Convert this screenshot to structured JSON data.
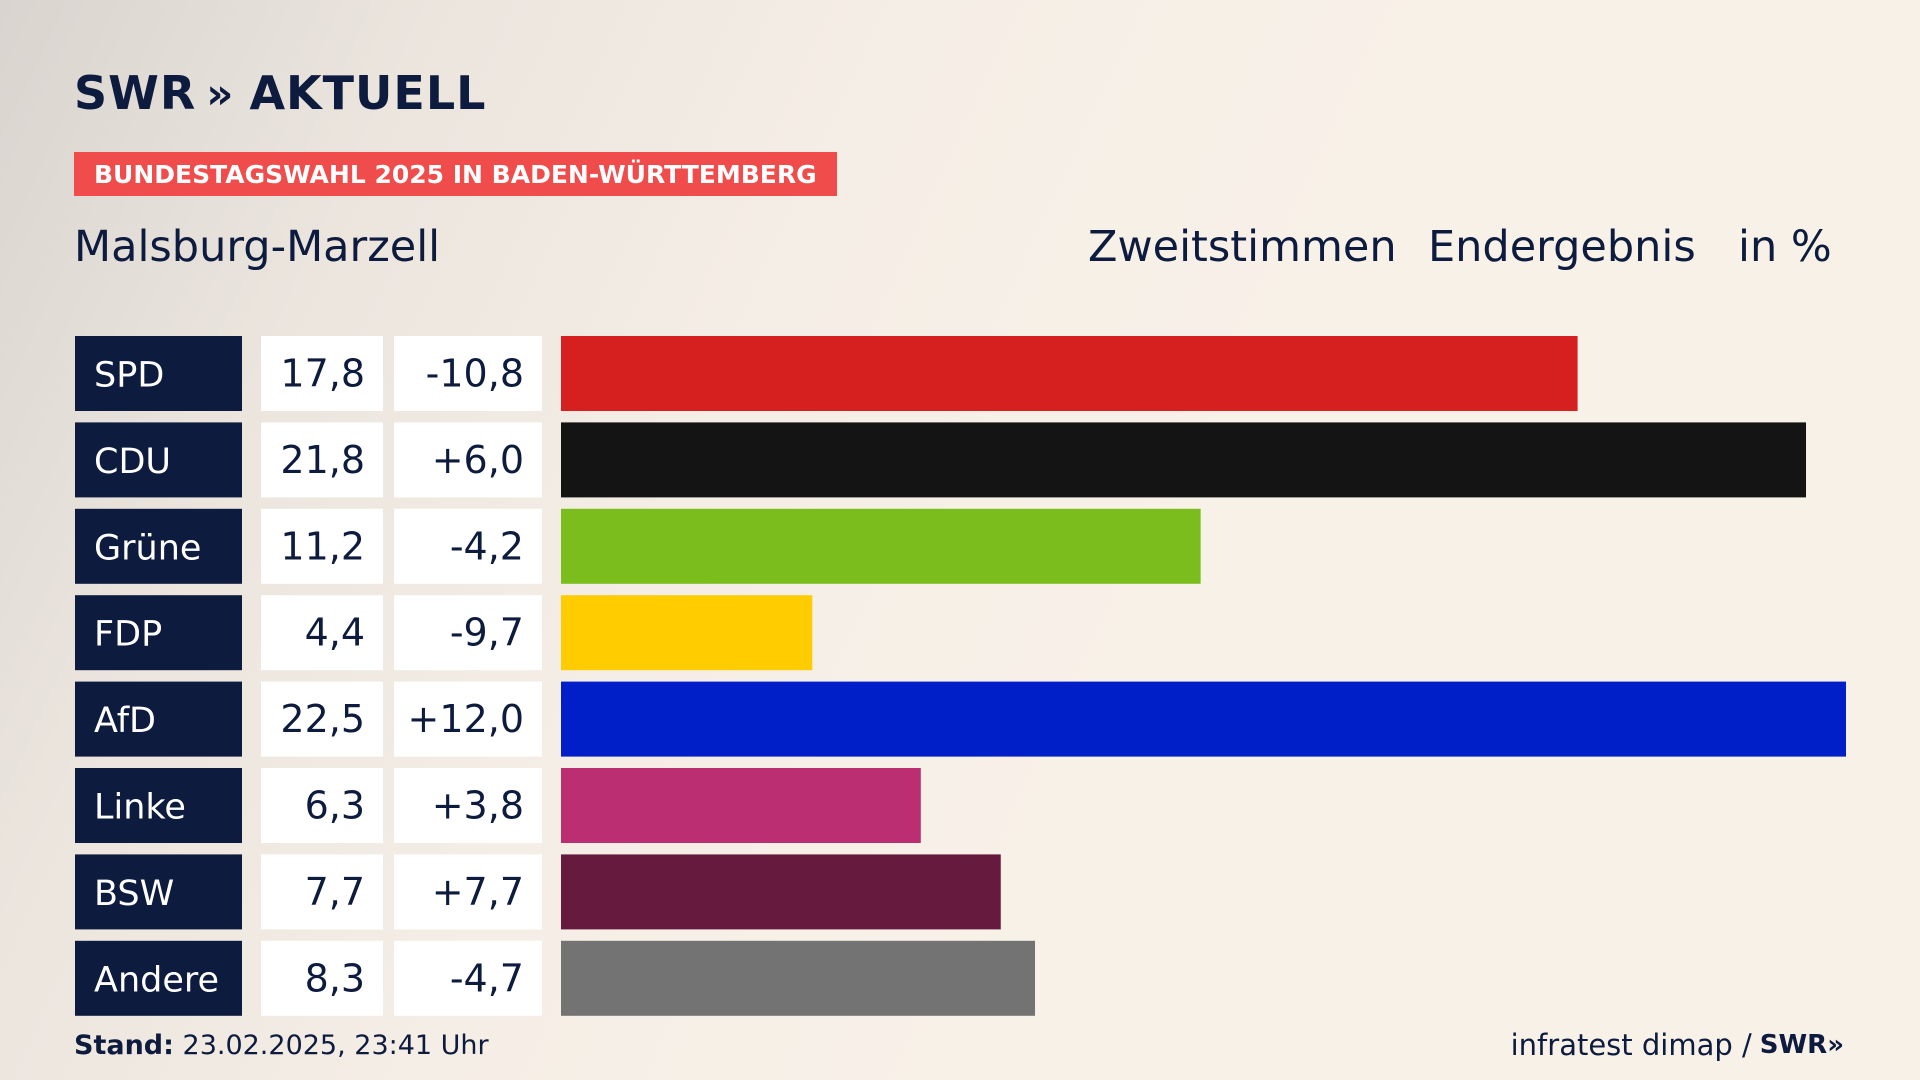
{
  "brand": {
    "logo_left": "SWR",
    "logo_chevrons": "»",
    "logo_right": "AKTUELL"
  },
  "banner": "BUNDESTAGSWAHL 2025 IN BADEN-WÜRTTEMBERG",
  "region": "Malsburg-Marzell",
  "headers": {
    "votes": "Zweitstimmen",
    "status": "Endergebnis",
    "unit": "in %"
  },
  "footer": {
    "stand_label": "Stand:",
    "stand_value": "23.02.2025, 23:41 Uhr",
    "source": "infratest dimap /",
    "source_logo": "SWR»"
  },
  "chart_data": {
    "type": "bar",
    "orientation": "horizontal",
    "categories": [
      "SPD",
      "CDU",
      "Grüne",
      "FDP",
      "AfD",
      "Linke",
      "BSW",
      "Andere"
    ],
    "values": [
      17.8,
      21.8,
      11.2,
      4.4,
      22.5,
      6.3,
      7.7,
      8.3
    ],
    "value_labels": [
      "17,8",
      "21,8",
      "11,2",
      "4,4",
      "22,5",
      "6,3",
      "7,7",
      "8,3"
    ],
    "change": [
      -10.8,
      6.0,
      -4.2,
      -9.7,
      12.0,
      3.8,
      7.7,
      -4.7
    ],
    "change_labels": [
      "-10,8",
      "+6,0",
      "-4,2",
      "-9,7",
      "+12,0",
      "+3,8",
      "+7,7",
      "-4,7"
    ],
    "colors": [
      "#d61f1f",
      "#141414",
      "#7bbd1c",
      "#ffcc00",
      "#001fc8",
      "#bb2f72",
      "#661a3e",
      "#737373"
    ],
    "xlim": [
      0,
      22.5
    ],
    "grid": false,
    "legend": "none"
  }
}
